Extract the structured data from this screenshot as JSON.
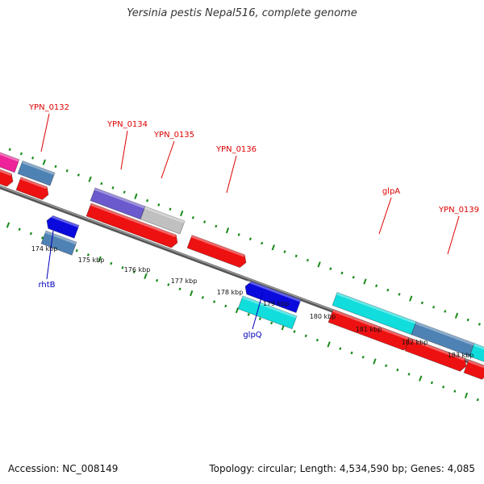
{
  "title": "Yersinia pestis Nepal516, complete genome",
  "footer": {
    "accession": "Accession: NC_008149",
    "summary": "Topology: circular; Length: 4,534,590 bp; Genes: 4,085"
  },
  "colors": {
    "red": "#ee1111",
    "magenta": "#ee2299",
    "steelblue": "#4f82b4",
    "slateblue": "#6a5acd",
    "lightgray": "#c0c0c0",
    "cyan": "#11dddd",
    "blue": "#0a0add",
    "backbone": "#777777",
    "tick": "#1a8a1a",
    "label_forward": "#dd0000",
    "label_reverse": "#0000bb"
  },
  "ruler_labels": [
    "174 kbp",
    "175 kbp",
    "176 kbp",
    "177 kbp",
    "178 kbp",
    "179 kbp",
    "180 kbp",
    "181 kbp",
    "182 kbp",
    "183 kbp"
  ],
  "genes": [
    {
      "label": "YPN_0132",
      "strand": "forward"
    },
    {
      "label": "YPN_0134",
      "strand": "forward"
    },
    {
      "label": "YPN_0135",
      "strand": "forward"
    },
    {
      "label": "YPN_0136",
      "strand": "forward"
    },
    {
      "label": "glpA",
      "strand": "forward"
    },
    {
      "label": "YPN_0139",
      "strand": "forward"
    },
    {
      "label": "rhtB",
      "strand": "reverse"
    },
    {
      "label": "glpQ",
      "strand": "reverse"
    }
  ]
}
